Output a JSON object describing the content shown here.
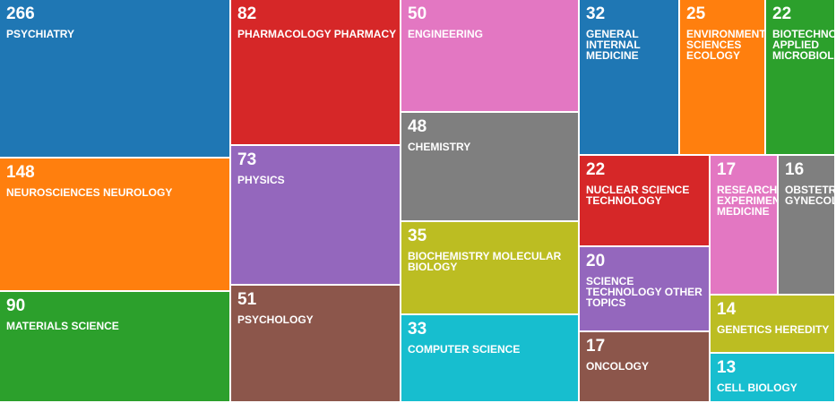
{
  "chart_data": {
    "type": "treemap",
    "colors": {
      "blue": "#1f77b4",
      "orange": "#ff7f0e",
      "green": "#2ca02c",
      "red": "#d62728",
      "purple": "#9467bd",
      "brown": "#8c564b",
      "pink": "#e377c2",
      "gray": "#7f7f7f",
      "olive": "#bcbd22",
      "cyan": "#17becf"
    },
    "items": [
      {
        "label": "PSYCHIATRY",
        "value": 266,
        "color": "#1f77b4"
      },
      {
        "label": "NEUROSCIENCES NEUROLOGY",
        "value": 148,
        "color": "#ff7f0e"
      },
      {
        "label": "MATERIALS SCIENCE",
        "value": 90,
        "color": "#2ca02c"
      },
      {
        "label": "PHARMACOLOGY PHARMACY",
        "value": 82,
        "color": "#d62728"
      },
      {
        "label": "PHYSICS",
        "value": 73,
        "color": "#9467bd"
      },
      {
        "label": "PSYCHOLOGY",
        "value": 51,
        "color": "#8c564b"
      },
      {
        "label": "ENGINEERING",
        "value": 50,
        "color": "#e377c2"
      },
      {
        "label": "CHEMISTRY",
        "value": 48,
        "color": "#7f7f7f"
      },
      {
        "label": "BIOCHEMISTRY MOLECULAR BIOLOGY",
        "value": 35,
        "color": "#bcbd22"
      },
      {
        "label": "COMPUTER SCIENCE",
        "value": 33,
        "color": "#17becf"
      },
      {
        "label": "GENERAL INTERNAL MEDICINE",
        "value": 32,
        "color": "#1f77b4"
      },
      {
        "label": "ENVIRONMENTAL SCIENCES ECOLOGY",
        "value": 25,
        "color": "#ff7f0e"
      },
      {
        "label": "BIOTECHNOLOGY APPLIED MICROBIOLOGY",
        "value": 22,
        "color": "#2ca02c"
      },
      {
        "label": "NUCLEAR SCIENCE TECHNOLOGY",
        "value": 22,
        "color": "#d62728"
      },
      {
        "label": "SCIENCE TECHNOLOGY OTHER TOPICS",
        "value": 20,
        "color": "#9467bd"
      },
      {
        "label": "ONCOLOGY",
        "value": 17,
        "color": "#8c564b"
      },
      {
        "label": "RESEARCH EXPERIMENTAL MEDICINE",
        "value": 17,
        "color": "#e377c2"
      },
      {
        "label": "OBSTETRICS GYNECOLOGY",
        "value": 16,
        "color": "#7f7f7f"
      },
      {
        "label": "GENETICS HEREDITY",
        "value": 14,
        "color": "#bcbd22"
      },
      {
        "label": "CELL BIOLOGY",
        "value": 13,
        "color": "#17becf"
      }
    ]
  }
}
